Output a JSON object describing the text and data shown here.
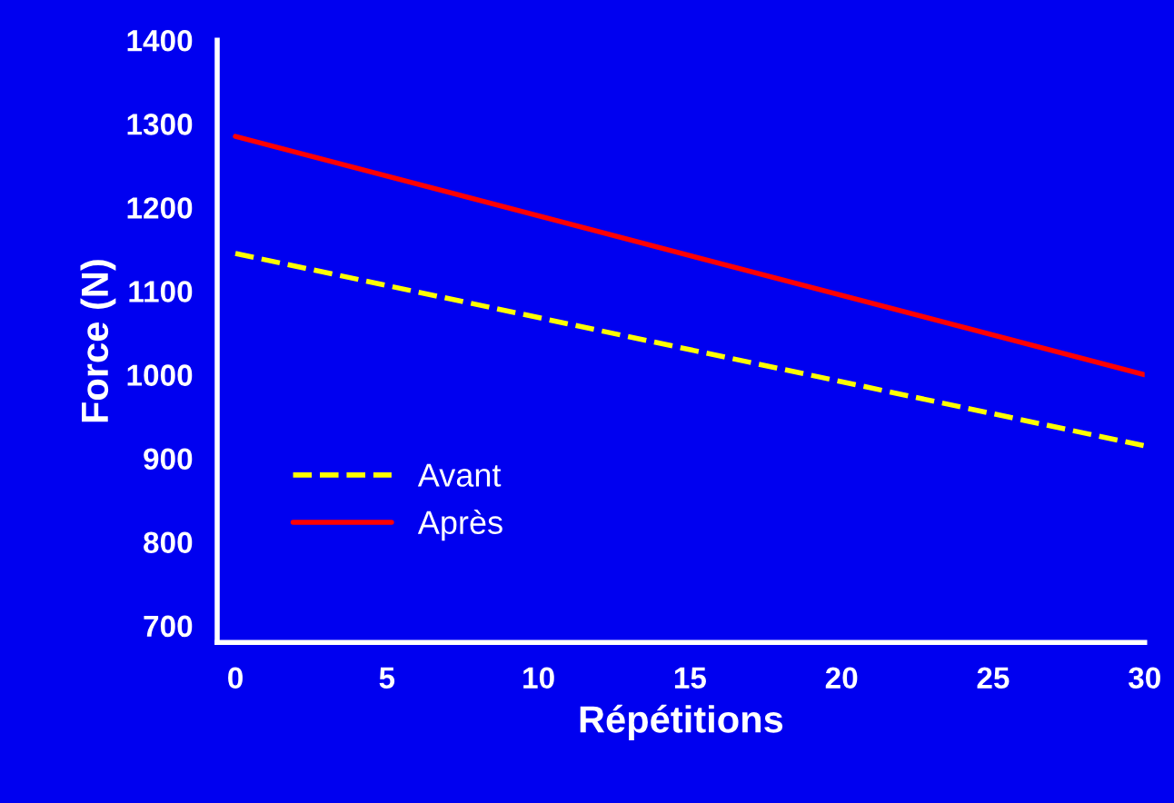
{
  "chart_data": {
    "type": "line",
    "xlabel": "Répétitions",
    "ylabel": "Force (N)",
    "x": [
      0,
      30
    ],
    "series": [
      {
        "name": "Avant",
        "color": "#ffff00",
        "line_style": "dashed",
        "values": [
          1145,
          915
        ]
      },
      {
        "name": "Après",
        "color": "#ff0000",
        "line_style": "solid",
        "values": [
          1285,
          1000
        ]
      }
    ],
    "xlim": [
      -0.6,
      30
    ],
    "ylim": [
      680,
      1400
    ],
    "xticks": [
      0,
      5,
      10,
      15,
      20,
      25,
      30
    ],
    "yticks": [
      700,
      800,
      900,
      1000,
      1100,
      1200,
      1300,
      1400
    ],
    "grid": false,
    "legend": "bottom left",
    "marker": "none"
  }
}
